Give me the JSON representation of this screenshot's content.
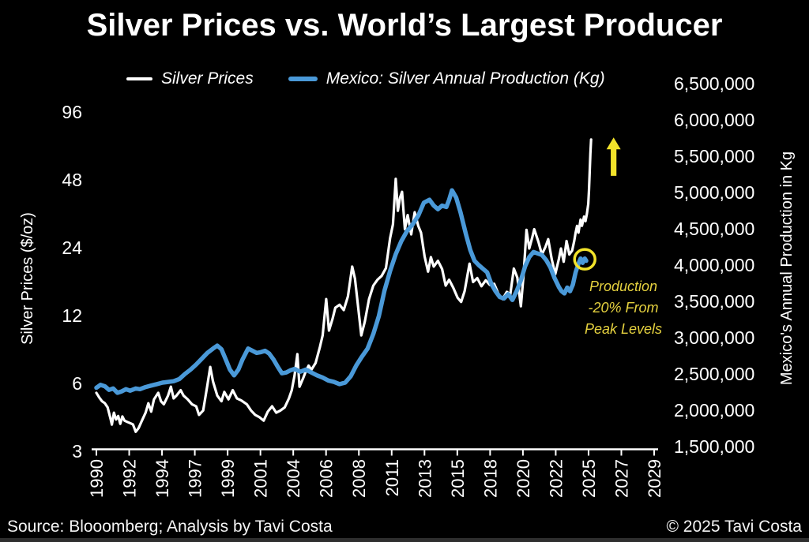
{
  "title": "Silver Prices vs. World’s Largest Producer",
  "legend": [
    {
      "label": "Silver Prices",
      "color": "#ffffff"
    },
    {
      "label": "Mexico: Silver Annual Production (Kg)",
      "color": "#4a99d8"
    }
  ],
  "left_axis": {
    "title": "Silver Prices ($/oz)"
  },
  "right_axis": {
    "title": "Mexico's Annual Production in Kg"
  },
  "annotation": {
    "lines": [
      "Production",
      "-20% From",
      "Peak Levels"
    ],
    "color": "#e6d23f"
  },
  "footer": {
    "source": "Source: Blooomberg; Analysis by Tavi Costa",
    "copyright": "© 2025 Tavi Costa"
  },
  "chart_data": {
    "type": "line",
    "title": "Silver Prices vs. World’s Largest Producer",
    "x_axis": {
      "range": [
        1988.7,
        2030.3
      ],
      "tick_labels": [
        "1990",
        "1992",
        "1994",
        "1997",
        "1999",
        "2001",
        "2004",
        "2006",
        "2008",
        "2011",
        "2013",
        "2015",
        "2018",
        "2020",
        "2022",
        "2025",
        "2027",
        "2029"
      ],
      "tick_interval_years": 2.333
    },
    "left_axis": {
      "label": "Silver Prices ($/oz)",
      "scale": "log2",
      "ticks": [
        96,
        48,
        24,
        12,
        6,
        3
      ]
    },
    "right_axis": {
      "label": "Mexico's Annual Production in Kg",
      "scale": "linear",
      "ticks": [
        6500000,
        6000000,
        5500000,
        5000000,
        4500000,
        4000000,
        3500000,
        3000000,
        2500000,
        2000000,
        1500000
      ]
    },
    "grid": false,
    "legend_position": "top",
    "series": [
      {
        "name": "Silver Prices",
        "axis": "left",
        "color": "#ffffff",
        "width": 3.2,
        "points": [
          [
            1990.0,
            5.45
          ],
          [
            1990.2,
            5.2
          ],
          [
            1990.4,
            5.0
          ],
          [
            1990.6,
            4.9
          ],
          [
            1990.8,
            4.7
          ],
          [
            1991.0,
            4.2
          ],
          [
            1991.1,
            3.94
          ],
          [
            1991.25,
            4.45
          ],
          [
            1991.4,
            4.15
          ],
          [
            1991.55,
            4.3
          ],
          [
            1991.7,
            3.97
          ],
          [
            1991.85,
            4.28
          ],
          [
            1992.0,
            4.1
          ],
          [
            1992.2,
            4.05
          ],
          [
            1992.4,
            4.0
          ],
          [
            1992.6,
            3.95
          ],
          [
            1992.8,
            3.66
          ],
          [
            1993.0,
            3.8
          ],
          [
            1993.2,
            4.05
          ],
          [
            1993.5,
            4.45
          ],
          [
            1993.7,
            4.9
          ],
          [
            1993.9,
            4.5
          ],
          [
            1994.1,
            5.1
          ],
          [
            1994.4,
            5.45
          ],
          [
            1994.6,
            5.0
          ],
          [
            1994.8,
            4.85
          ],
          [
            1995.1,
            5.3
          ],
          [
            1995.3,
            5.8
          ],
          [
            1995.5,
            5.15
          ],
          [
            1995.7,
            5.3
          ],
          [
            1996.0,
            5.6
          ],
          [
            1996.2,
            5.3
          ],
          [
            1996.5,
            5.1
          ],
          [
            1996.8,
            4.85
          ],
          [
            1997.1,
            4.75
          ],
          [
            1997.3,
            4.35
          ],
          [
            1997.6,
            4.55
          ],
          [
            1997.9,
            5.9
          ],
          [
            1998.1,
            7.1
          ],
          [
            1998.3,
            6.1
          ],
          [
            1998.6,
            5.3
          ],
          [
            1998.9,
            5.0
          ],
          [
            1999.1,
            5.5
          ],
          [
            1999.4,
            5.1
          ],
          [
            1999.7,
            5.6
          ],
          [
            2000.0,
            5.15
          ],
          [
            2000.3,
            5.05
          ],
          [
            2000.7,
            4.85
          ],
          [
            2001.0,
            4.55
          ],
          [
            2001.3,
            4.35
          ],
          [
            2001.6,
            4.25
          ],
          [
            2001.9,
            4.1
          ],
          [
            2002.2,
            4.5
          ],
          [
            2002.5,
            4.75
          ],
          [
            2002.8,
            4.45
          ],
          [
            2003.1,
            4.55
          ],
          [
            2003.4,
            4.7
          ],
          [
            2003.7,
            5.15
          ],
          [
            2003.9,
            5.6
          ],
          [
            2004.1,
            6.5
          ],
          [
            2004.3,
            8.1
          ],
          [
            2004.45,
            5.8
          ],
          [
            2004.7,
            6.3
          ],
          [
            2004.9,
            6.8
          ],
          [
            2005.1,
            7.2
          ],
          [
            2005.3,
            6.9
          ],
          [
            2005.6,
            7.4
          ],
          [
            2005.9,
            8.7
          ],
          [
            2006.1,
            9.8
          ],
          [
            2006.35,
            14.2
          ],
          [
            2006.55,
            10.3
          ],
          [
            2006.8,
            11.6
          ],
          [
            2007.0,
            13.0
          ],
          [
            2007.3,
            13.4
          ],
          [
            2007.6,
            12.7
          ],
          [
            2007.9,
            14.6
          ],
          [
            2008.2,
            19.8
          ],
          [
            2008.4,
            17.5
          ],
          [
            2008.6,
            13.5
          ],
          [
            2008.85,
            9.8
          ],
          [
            2009.1,
            11.3
          ],
          [
            2009.4,
            14.2
          ],
          [
            2009.7,
            16.3
          ],
          [
            2010.0,
            17.3
          ],
          [
            2010.3,
            18.0
          ],
          [
            2010.6,
            19.5
          ],
          [
            2010.9,
            26.5
          ],
          [
            2011.1,
            30.5
          ],
          [
            2011.3,
            48.5
          ],
          [
            2011.45,
            35.0
          ],
          [
            2011.6,
            40.0
          ],
          [
            2011.75,
            42.5
          ],
          [
            2011.95,
            29.0
          ],
          [
            2012.15,
            33.5
          ],
          [
            2012.4,
            27.5
          ],
          [
            2012.65,
            34.5
          ],
          [
            2012.9,
            30.0
          ],
          [
            2013.1,
            28.0
          ],
          [
            2013.35,
            22.0
          ],
          [
            2013.6,
            18.8
          ],
          [
            2013.8,
            21.8
          ],
          [
            2014.0,
            19.8
          ],
          [
            2014.3,
            21.0
          ],
          [
            2014.6,
            19.3
          ],
          [
            2014.85,
            16.3
          ],
          [
            2015.1,
            17.3
          ],
          [
            2015.4,
            15.9
          ],
          [
            2015.7,
            14.4
          ],
          [
            2015.95,
            13.8
          ],
          [
            2016.2,
            15.4
          ],
          [
            2016.55,
            20.4
          ],
          [
            2016.8,
            16.9
          ],
          [
            2017.1,
            17.6
          ],
          [
            2017.4,
            16.2
          ],
          [
            2017.7,
            17.2
          ],
          [
            2018.0,
            16.4
          ],
          [
            2018.3,
            16.6
          ],
          [
            2018.6,
            15.0
          ],
          [
            2018.9,
            14.2
          ],
          [
            2019.2,
            15.3
          ],
          [
            2019.45,
            14.9
          ],
          [
            2019.7,
            19.4
          ],
          [
            2019.95,
            17.7
          ],
          [
            2020.2,
            13.2
          ],
          [
            2020.4,
            18.3
          ],
          [
            2020.6,
            28.8
          ],
          [
            2020.8,
            23.8
          ],
          [
            2021.0,
            26.5
          ],
          [
            2021.15,
            29.0
          ],
          [
            2021.45,
            25.5
          ],
          [
            2021.7,
            22.4
          ],
          [
            2021.95,
            24.2
          ],
          [
            2022.15,
            26.2
          ],
          [
            2022.4,
            21.3
          ],
          [
            2022.65,
            18.3
          ],
          [
            2022.9,
            21.3
          ],
          [
            2023.05,
            23.8
          ],
          [
            2023.25,
            20.8
          ],
          [
            2023.45,
            25.7
          ],
          [
            2023.65,
            22.4
          ],
          [
            2023.85,
            23.3
          ],
          [
            2024.0,
            25.8
          ],
          [
            2024.1,
            28.0
          ],
          [
            2024.2,
            30.0
          ],
          [
            2024.3,
            28.0
          ],
          [
            2024.45,
            32.0
          ],
          [
            2024.55,
            30.0
          ],
          [
            2024.7,
            33.0
          ],
          [
            2024.8,
            31.5
          ],
          [
            2024.9,
            34.0
          ],
          [
            2025.0,
            37.5
          ],
          [
            2025.05,
            43.0
          ],
          [
            2025.1,
            52.0
          ],
          [
            2025.15,
            63.0
          ],
          [
            2025.2,
            72.5
          ]
        ]
      },
      {
        "name": "Mexico: Silver Annual Production (Kg)",
        "axis": "right",
        "color": "#4a99d8",
        "width": 5.5,
        "points": [
          [
            1990.0,
            2310000
          ],
          [
            1990.3,
            2350000
          ],
          [
            1990.6,
            2330000
          ],
          [
            1990.9,
            2280000
          ],
          [
            1991.2,
            2300000
          ],
          [
            1991.5,
            2240000
          ],
          [
            1991.8,
            2260000
          ],
          [
            1992.1,
            2290000
          ],
          [
            1992.4,
            2270000
          ],
          [
            1992.8,
            2300000
          ],
          [
            1993.1,
            2290000
          ],
          [
            1993.5,
            2320000
          ],
          [
            1993.9,
            2340000
          ],
          [
            1994.3,
            2360000
          ],
          [
            1994.7,
            2380000
          ],
          [
            1995.1,
            2390000
          ],
          [
            1995.5,
            2400000
          ],
          [
            1995.9,
            2430000
          ],
          [
            1996.3,
            2500000
          ],
          [
            1996.7,
            2560000
          ],
          [
            1997.1,
            2630000
          ],
          [
            1997.5,
            2710000
          ],
          [
            1997.9,
            2790000
          ],
          [
            1998.3,
            2850000
          ],
          [
            1998.6,
            2890000
          ],
          [
            1998.9,
            2840000
          ],
          [
            1999.2,
            2700000
          ],
          [
            1999.5,
            2560000
          ],
          [
            1999.8,
            2480000
          ],
          [
            2000.1,
            2560000
          ],
          [
            2000.4,
            2700000
          ],
          [
            2000.8,
            2850000
          ],
          [
            2001.1,
            2820000
          ],
          [
            2001.4,
            2790000
          ],
          [
            2001.7,
            2800000
          ],
          [
            2002.0,
            2820000
          ],
          [
            2002.3,
            2780000
          ],
          [
            2002.6,
            2700000
          ],
          [
            2002.9,
            2600000
          ],
          [
            2003.2,
            2510000
          ],
          [
            2003.5,
            2520000
          ],
          [
            2003.8,
            2550000
          ],
          [
            2004.1,
            2570000
          ],
          [
            2004.5,
            2530000
          ],
          [
            2004.9,
            2560000
          ],
          [
            2005.3,
            2520000
          ],
          [
            2005.7,
            2480000
          ],
          [
            2006.1,
            2450000
          ],
          [
            2006.5,
            2410000
          ],
          [
            2006.9,
            2390000
          ],
          [
            2007.3,
            2360000
          ],
          [
            2007.7,
            2380000
          ],
          [
            2008.1,
            2470000
          ],
          [
            2008.5,
            2620000
          ],
          [
            2008.9,
            2740000
          ],
          [
            2009.3,
            2850000
          ],
          [
            2009.7,
            3050000
          ],
          [
            2010.1,
            3300000
          ],
          [
            2010.5,
            3650000
          ],
          [
            2010.9,
            3920000
          ],
          [
            2011.3,
            4150000
          ],
          [
            2011.7,
            4330000
          ],
          [
            2012.1,
            4470000
          ],
          [
            2012.5,
            4560000
          ],
          [
            2012.9,
            4680000
          ],
          [
            2013.3,
            4860000
          ],
          [
            2013.7,
            4900000
          ],
          [
            2014.0,
            4820000
          ],
          [
            2014.3,
            4770000
          ],
          [
            2014.6,
            4820000
          ],
          [
            2014.9,
            4800000
          ],
          [
            2015.1,
            4900000
          ],
          [
            2015.3,
            5030000
          ],
          [
            2015.6,
            4930000
          ],
          [
            2015.9,
            4730000
          ],
          [
            2016.3,
            4420000
          ],
          [
            2016.6,
            4210000
          ],
          [
            2016.9,
            4060000
          ],
          [
            2017.2,
            4000000
          ],
          [
            2017.5,
            3950000
          ],
          [
            2017.8,
            3900000
          ],
          [
            2018.1,
            3740000
          ],
          [
            2018.4,
            3640000
          ],
          [
            2018.7,
            3560000
          ],
          [
            2019.0,
            3540000
          ],
          [
            2019.3,
            3600000
          ],
          [
            2019.6,
            3520000
          ],
          [
            2019.9,
            3640000
          ],
          [
            2020.2,
            3790000
          ],
          [
            2020.5,
            3980000
          ],
          [
            2020.8,
            4110000
          ],
          [
            2021.1,
            4180000
          ],
          [
            2021.4,
            4160000
          ],
          [
            2021.7,
            4140000
          ],
          [
            2022.0,
            4070000
          ],
          [
            2022.3,
            3970000
          ],
          [
            2022.6,
            3820000
          ],
          [
            2022.9,
            3700000
          ],
          [
            2023.1,
            3640000
          ],
          [
            2023.3,
            3610000
          ],
          [
            2023.5,
            3690000
          ],
          [
            2023.7,
            3640000
          ],
          [
            2023.9,
            3730000
          ],
          [
            2024.1,
            3900000
          ],
          [
            2024.3,
            4020000
          ],
          [
            2024.45,
            4090000
          ],
          [
            2024.6,
            4030000
          ],
          [
            2024.75,
            4090000
          ],
          [
            2024.85,
            4060000
          ]
        ]
      }
    ],
    "annotations": {
      "circle": {
        "axis": "right",
        "year": 2024.75,
        "value": 4080000,
        "radius": 13,
        "color": "#f2e32a"
      },
      "arrow_up": {
        "axis": "left",
        "year": 2026.8,
        "value_from": 50,
        "value_to": 74,
        "color": "#f2e32a"
      },
      "label": {
        "text": "Production -20% From Peak Levels",
        "color": "#e6d23f"
      }
    }
  }
}
